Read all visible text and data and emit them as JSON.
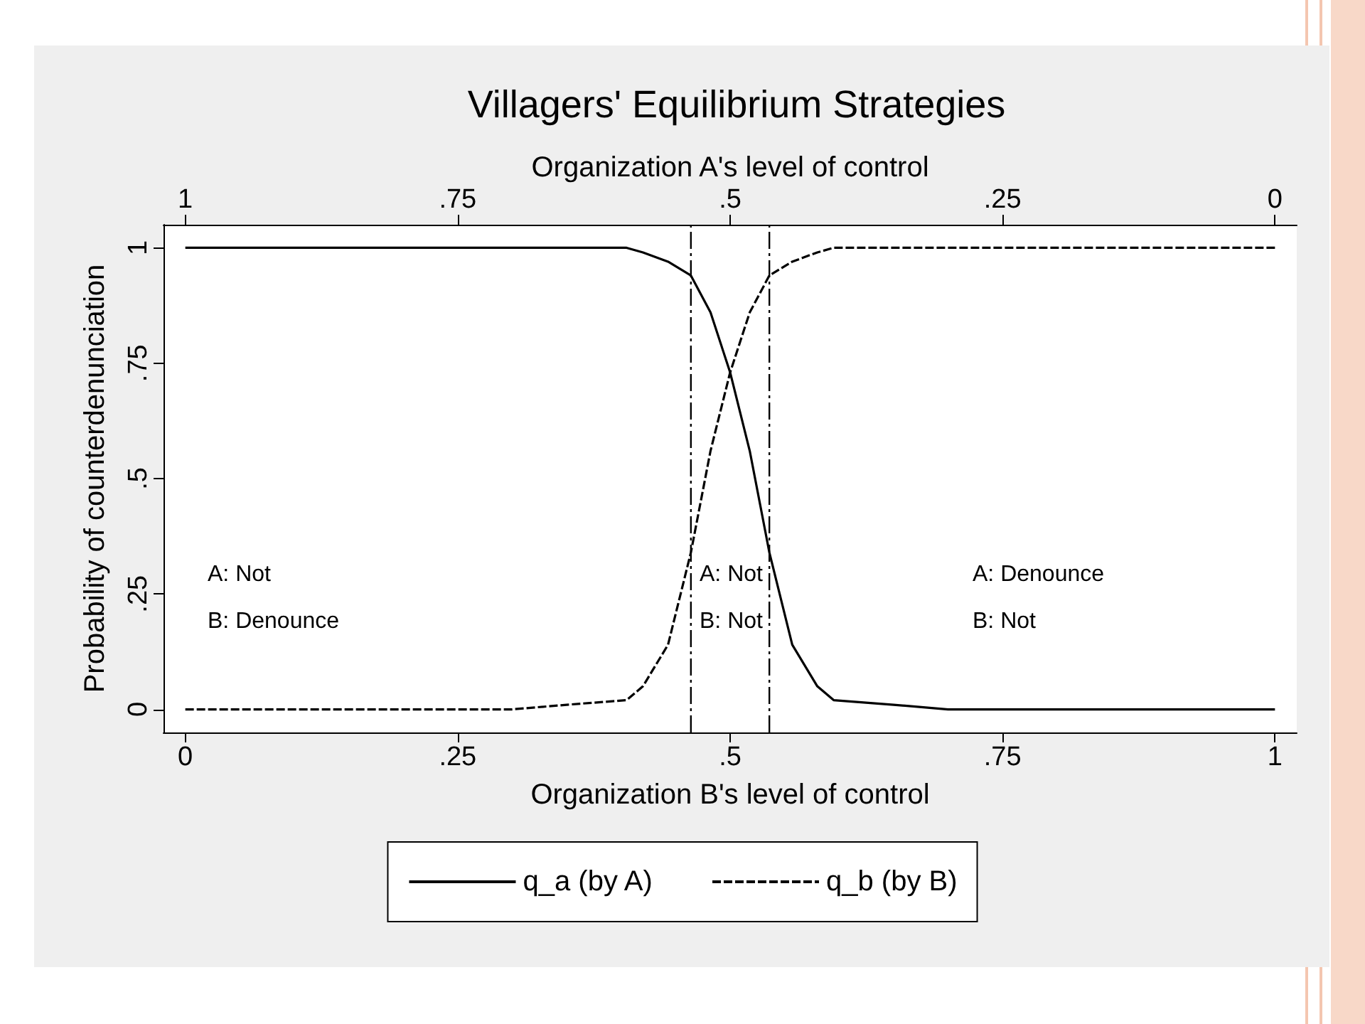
{
  "chart_data": {
    "type": "line",
    "title": "Villagers' Equilibrium Strategies",
    "xlabel": "Organization B's level of control",
    "x2label": "Organization A's level of control",
    "ylabel": "Probability of counterdenunciation",
    "x": [
      0,
      0.3,
      0.35,
      0.405,
      0.42,
      0.443,
      0.464,
      0.482,
      0.5,
      0.518,
      0.536,
      0.557,
      0.58,
      0.595,
      0.65,
      0.7,
      1
    ],
    "series": [
      {
        "name": "q_a (by A)",
        "color": "#000000",
        "line_style": "solid",
        "values": [
          1,
          1,
          1,
          1,
          0.99,
          0.97,
          0.94,
          0.86,
          0.73,
          0.56,
          0.34,
          0.14,
          0.05,
          0.02,
          0.01,
          0,
          0
        ]
      },
      {
        "name": "q_b (by B)",
        "color": "#000000",
        "line_style": "dashed",
        "values": [
          0,
          0,
          0.01,
          0.02,
          0.05,
          0.14,
          0.34,
          0.56,
          0.73,
          0.86,
          0.94,
          0.97,
          0.99,
          1,
          1,
          1,
          1
        ]
      }
    ],
    "xlim": [
      -0.02,
      1.02
    ],
    "xticks": [
      0,
      {
        "value": 0.25,
        "label": ".25"
      },
      {
        "value": 0.5,
        "label": ".5"
      },
      {
        "value": 0.75,
        "label": ".75"
      },
      1
    ],
    "x2lim": [
      1.02,
      -0.02
    ],
    "x2ticks": [
      1,
      {
        "value": 0.75,
        "label": ".75"
      },
      {
        "value": 0.5,
        "label": ".5"
      },
      {
        "value": 0.25,
        "label": ".25"
      },
      0
    ],
    "ylim": [
      -0.05,
      1.05
    ],
    "yticks": [
      0,
      {
        "value": 0.25,
        "label": ".25"
      },
      {
        "value": 0.5,
        "label": ".5"
      },
      {
        "value": 0.75,
        "label": ".75"
      },
      1
    ],
    "ref_lines": [
      {
        "axis": "x",
        "value": 0.464,
        "color": "#000000",
        "line_style": "dashed"
      },
      {
        "axis": "x",
        "value": 0.536,
        "color": "#000000",
        "line_style": "dashed"
      }
    ],
    "annotations": [
      "A: Not",
      "B: Denounce",
      "A: Not",
      "B: Not",
      "A: Denounce",
      "B: Not"
    ],
    "grid": false,
    "legend": "bottom",
    "marker": "none"
  }
}
